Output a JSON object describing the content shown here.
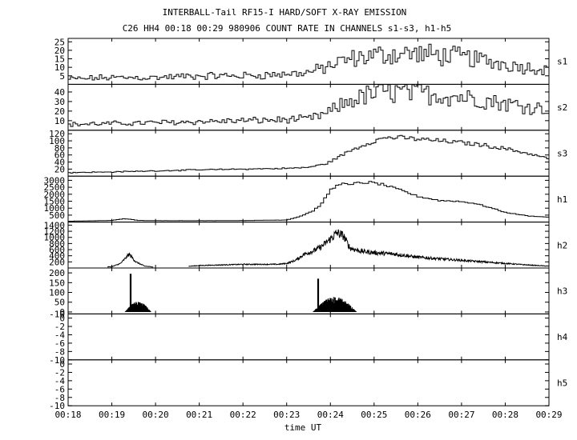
{
  "chart_data": {
    "type": "line",
    "title": "INTERBALL-Tail RF15-I HARD/SOFT X-RAY EMISSION",
    "subtitle": "C26 HH4 00:18 00:29 980906  COUNT RATE IN CHANNELS s1-s3, h1-h5",
    "xlabel": "time UT",
    "x_ticks": [
      "00:18",
      "00:19",
      "00:20",
      "00:21",
      "00:22",
      "00:23",
      "00:24",
      "00:25",
      "00:26",
      "00:27",
      "00:28",
      "00:29"
    ],
    "x_range_minutes": [
      18,
      29
    ],
    "panels": [
      {
        "name": "s1",
        "ylim": [
          0,
          27
        ],
        "yticks": [
          5,
          10,
          15,
          20,
          25
        ],
        "style": "step-noisy",
        "noise": 0.35,
        "series": {
          "x": [
            18.0,
            19.0,
            20.0,
            21.0,
            22.0,
            23.0,
            23.5,
            23.9,
            24.2,
            24.5,
            25.0,
            25.5,
            26.0,
            26.5,
            27.0,
            27.5,
            28.0,
            28.5,
            29.0
          ],
          "y": [
            3,
            4,
            4,
            5,
            5,
            6,
            7,
            10,
            13,
            15,
            17,
            18,
            18,
            17,
            16,
            14,
            12,
            10,
            9
          ]
        }
      },
      {
        "name": "s2",
        "ylim": [
          0,
          48
        ],
        "yticks": [
          10,
          20,
          30,
          40
        ],
        "style": "step-noisy",
        "noise": 0.3,
        "series": {
          "x": [
            18.0,
            19.0,
            20.0,
            21.0,
            22.0,
            23.0,
            23.5,
            23.9,
            24.2,
            24.5,
            25.0,
            25.5,
            26.0,
            26.5,
            27.0,
            27.5,
            28.0,
            28.5,
            29.0
          ],
          "y": [
            6,
            7,
            8,
            9,
            10,
            11,
            12,
            17,
            25,
            32,
            38,
            40,
            39,
            37,
            35,
            32,
            28,
            25,
            22
          ]
        }
      },
      {
        "name": "s3",
        "ylim": [
          0,
          130
        ],
        "yticks": [
          20,
          40,
          60,
          80,
          100,
          120
        ],
        "style": "step-noisy",
        "noise": 0.06,
        "series": {
          "x": [
            18.0,
            19.0,
            20.0,
            21.0,
            22.0,
            23.0,
            23.5,
            23.9,
            24.2,
            24.5,
            24.8,
            25.0,
            25.3,
            25.7,
            26.0,
            26.5,
            27.0,
            27.5,
            28.0,
            28.5,
            29.0
          ],
          "y": [
            10,
            12,
            15,
            18,
            20,
            22,
            25,
            35,
            55,
            75,
            90,
            100,
            110,
            108,
            105,
            100,
            95,
            88,
            78,
            65,
            50
          ]
        }
      },
      {
        "name": "h1",
        "ylim": [
          0,
          3300
        ],
        "yticks": [
          500,
          1000,
          1500,
          2000,
          2500,
          3000
        ],
        "style": "step",
        "noise": 0.03,
        "series": {
          "x": [
            18.0,
            19.0,
            19.3,
            19.6,
            20.0,
            21.0,
            22.0,
            23.0,
            23.3,
            23.6,
            23.8,
            24.0,
            24.2,
            24.3,
            24.4,
            24.6,
            24.9,
            25.2,
            25.6,
            26.0,
            26.5,
            26.9,
            27.3,
            27.7,
            28.0,
            28.5,
            29.0
          ],
          "y": [
            60,
            120,
            250,
            120,
            100,
            100,
            110,
            150,
            400,
            800,
            1300,
            2300,
            2700,
            2900,
            2600,
            2800,
            2850,
            2700,
            2300,
            1850,
            1550,
            1500,
            1350,
            1000,
            700,
            450,
            350
          ]
        }
      },
      {
        "name": "h2",
        "ylim": [
          0,
          1500
        ],
        "yticks": [
          200,
          400,
          600,
          800,
          1000,
          1200,
          1400
        ],
        "style": "line-noisy",
        "noise": 0.14,
        "series": {
          "x": [
            18.0,
            19.0,
            19.2,
            19.3,
            19.4,
            19.55,
            19.75,
            20.0,
            20.5,
            21.0,
            22.0,
            22.8,
            23.0,
            23.2,
            23.4,
            23.6,
            23.8,
            24.0,
            24.15,
            24.3,
            24.45,
            24.7,
            25.0,
            25.5,
            26.0,
            26.5,
            27.0,
            27.5,
            28.0,
            28.5,
            29.0
          ],
          "y": [
            20,
            40,
            150,
            300,
            450,
            200,
            60,
            30,
            30,
            80,
            120,
            120,
            150,
            250,
            450,
            550,
            700,
            950,
            1150,
            1050,
            650,
            550,
            500,
            450,
            350,
            300,
            250,
            200,
            150,
            100,
            60
          ]
        }
      },
      {
        "name": "h3",
        "ylim": [
          -10,
          225
        ],
        "yticks": [
          -10,
          0,
          50,
          100,
          150,
          200
        ],
        "style": "burst",
        "bursts": [
          {
            "start": 19.3,
            "end": 19.9,
            "peak_time": 19.43,
            "peak": 195,
            "level": 45
          },
          {
            "start": 23.6,
            "end": 24.6,
            "peak_time": 23.72,
            "peak": 170,
            "level": 65
          }
        ],
        "series": {
          "x": [
            18.0,
            29.0
          ],
          "y": [
            0,
            0
          ]
        }
      },
      {
        "name": "h4",
        "ylim": [
          -10,
          1
        ],
        "yticks": [
          -10,
          -8,
          -6,
          -4,
          -2,
          0
        ],
        "style": "empty",
        "series": {
          "x": [],
          "y": []
        }
      },
      {
        "name": "h5",
        "ylim": [
          -10,
          1
        ],
        "yticks": [
          -10,
          -8,
          -6,
          -4,
          -2,
          0
        ],
        "style": "empty",
        "series": {
          "x": [],
          "y": []
        }
      }
    ]
  }
}
